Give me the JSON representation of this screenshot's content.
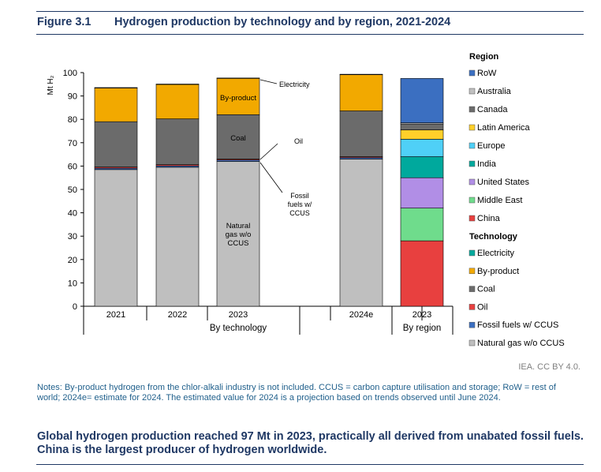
{
  "figure": {
    "number": "Figure 3.1",
    "title": "Hydrogen production by technology and by region, 2021-2024"
  },
  "credit": "IEA. CC BY 4.0.",
  "notes": "Notes: By-product hydrogen from the chlor-alkali industry is not included. CCUS = carbon capture utilisation and storage; RoW = rest of world; 2024e= estimate for 2024. The estimated value for 2024 is a projection based on trends observed until June 2024.",
  "summary": "Global hydrogen production reached 97 Mt in 2023, practically all derived from unabated fossil fuels. China is the largest producer of hydrogen worldwide.",
  "chart_data": {
    "type": "bar",
    "stacked": true,
    "ylabel": "Mt H₂",
    "ylim": [
      0,
      100
    ],
    "yticks": [
      0,
      10,
      20,
      30,
      40,
      50,
      60,
      70,
      80,
      90,
      100
    ],
    "grid": false,
    "group_labels": [
      "By technology",
      "By region"
    ],
    "categories": [
      "2021",
      "2022",
      "2023",
      "2024e",
      "2023"
    ],
    "technology": {
      "heading": "Technology",
      "categories": [
        "2021",
        "2022",
        "2023",
        "2024e"
      ],
      "series": [
        {
          "name": "Natural gas w/o CCUS",
          "color": "#bfbfbf",
          "values": [
            58.5,
            59.5,
            62.0,
            63.0
          ]
        },
        {
          "name": "Fossil fuels w/ CCUS",
          "color": "#3b6fc1",
          "values": [
            0.6,
            0.6,
            0.6,
            0.6
          ]
        },
        {
          "name": "Oil",
          "color": "#e8403f",
          "values": [
            0.5,
            0.5,
            0.4,
            0.4
          ]
        },
        {
          "name": "Coal",
          "color": "#6b6b6b",
          "values": [
            19.4,
            19.6,
            19.0,
            19.6
          ]
        },
        {
          "name": "By-product",
          "color": "#f2a900",
          "values": [
            14.5,
            14.8,
            15.6,
            15.6
          ]
        },
        {
          "name": "Electricity",
          "color": "#00a99d",
          "values": [
            0.1,
            0.1,
            0.1,
            0.1
          ]
        }
      ]
    },
    "region": {
      "heading": "Region",
      "category": "2023",
      "series": [
        {
          "name": "China",
          "color": "#e8403f",
          "value": 28.0
        },
        {
          "name": "Middle East",
          "color": "#6fdc8c",
          "value": 14.0
        },
        {
          "name": "United States",
          "color": "#b18ee6",
          "value": 13.0
        },
        {
          "name": "India",
          "color": "#00a99d",
          "value": 9.0
        },
        {
          "name": "Europe",
          "color": "#4fd0f7",
          "value": 7.5
        },
        {
          "name": "Latin America",
          "color": "#ffd02a",
          "value": 4.0
        },
        {
          "name": "Canada",
          "color": "#6b6b6b",
          "value": 2.5
        },
        {
          "name": "Australia",
          "color": "#bfbfbf",
          "value": 0.5
        },
        {
          "name": "RoW",
          "color": "#3b6fc1",
          "value": 19.0
        }
      ]
    },
    "annotations": [
      {
        "text": "Electricity"
      },
      {
        "text": "By-product"
      },
      {
        "text": "Coal"
      },
      {
        "text": "Oil"
      },
      {
        "lines": [
          "Fossil",
          "fuels w/",
          "CCUS"
        ]
      },
      {
        "lines": [
          "Natural",
          "gas w/o",
          "CCUS"
        ]
      }
    ]
  }
}
